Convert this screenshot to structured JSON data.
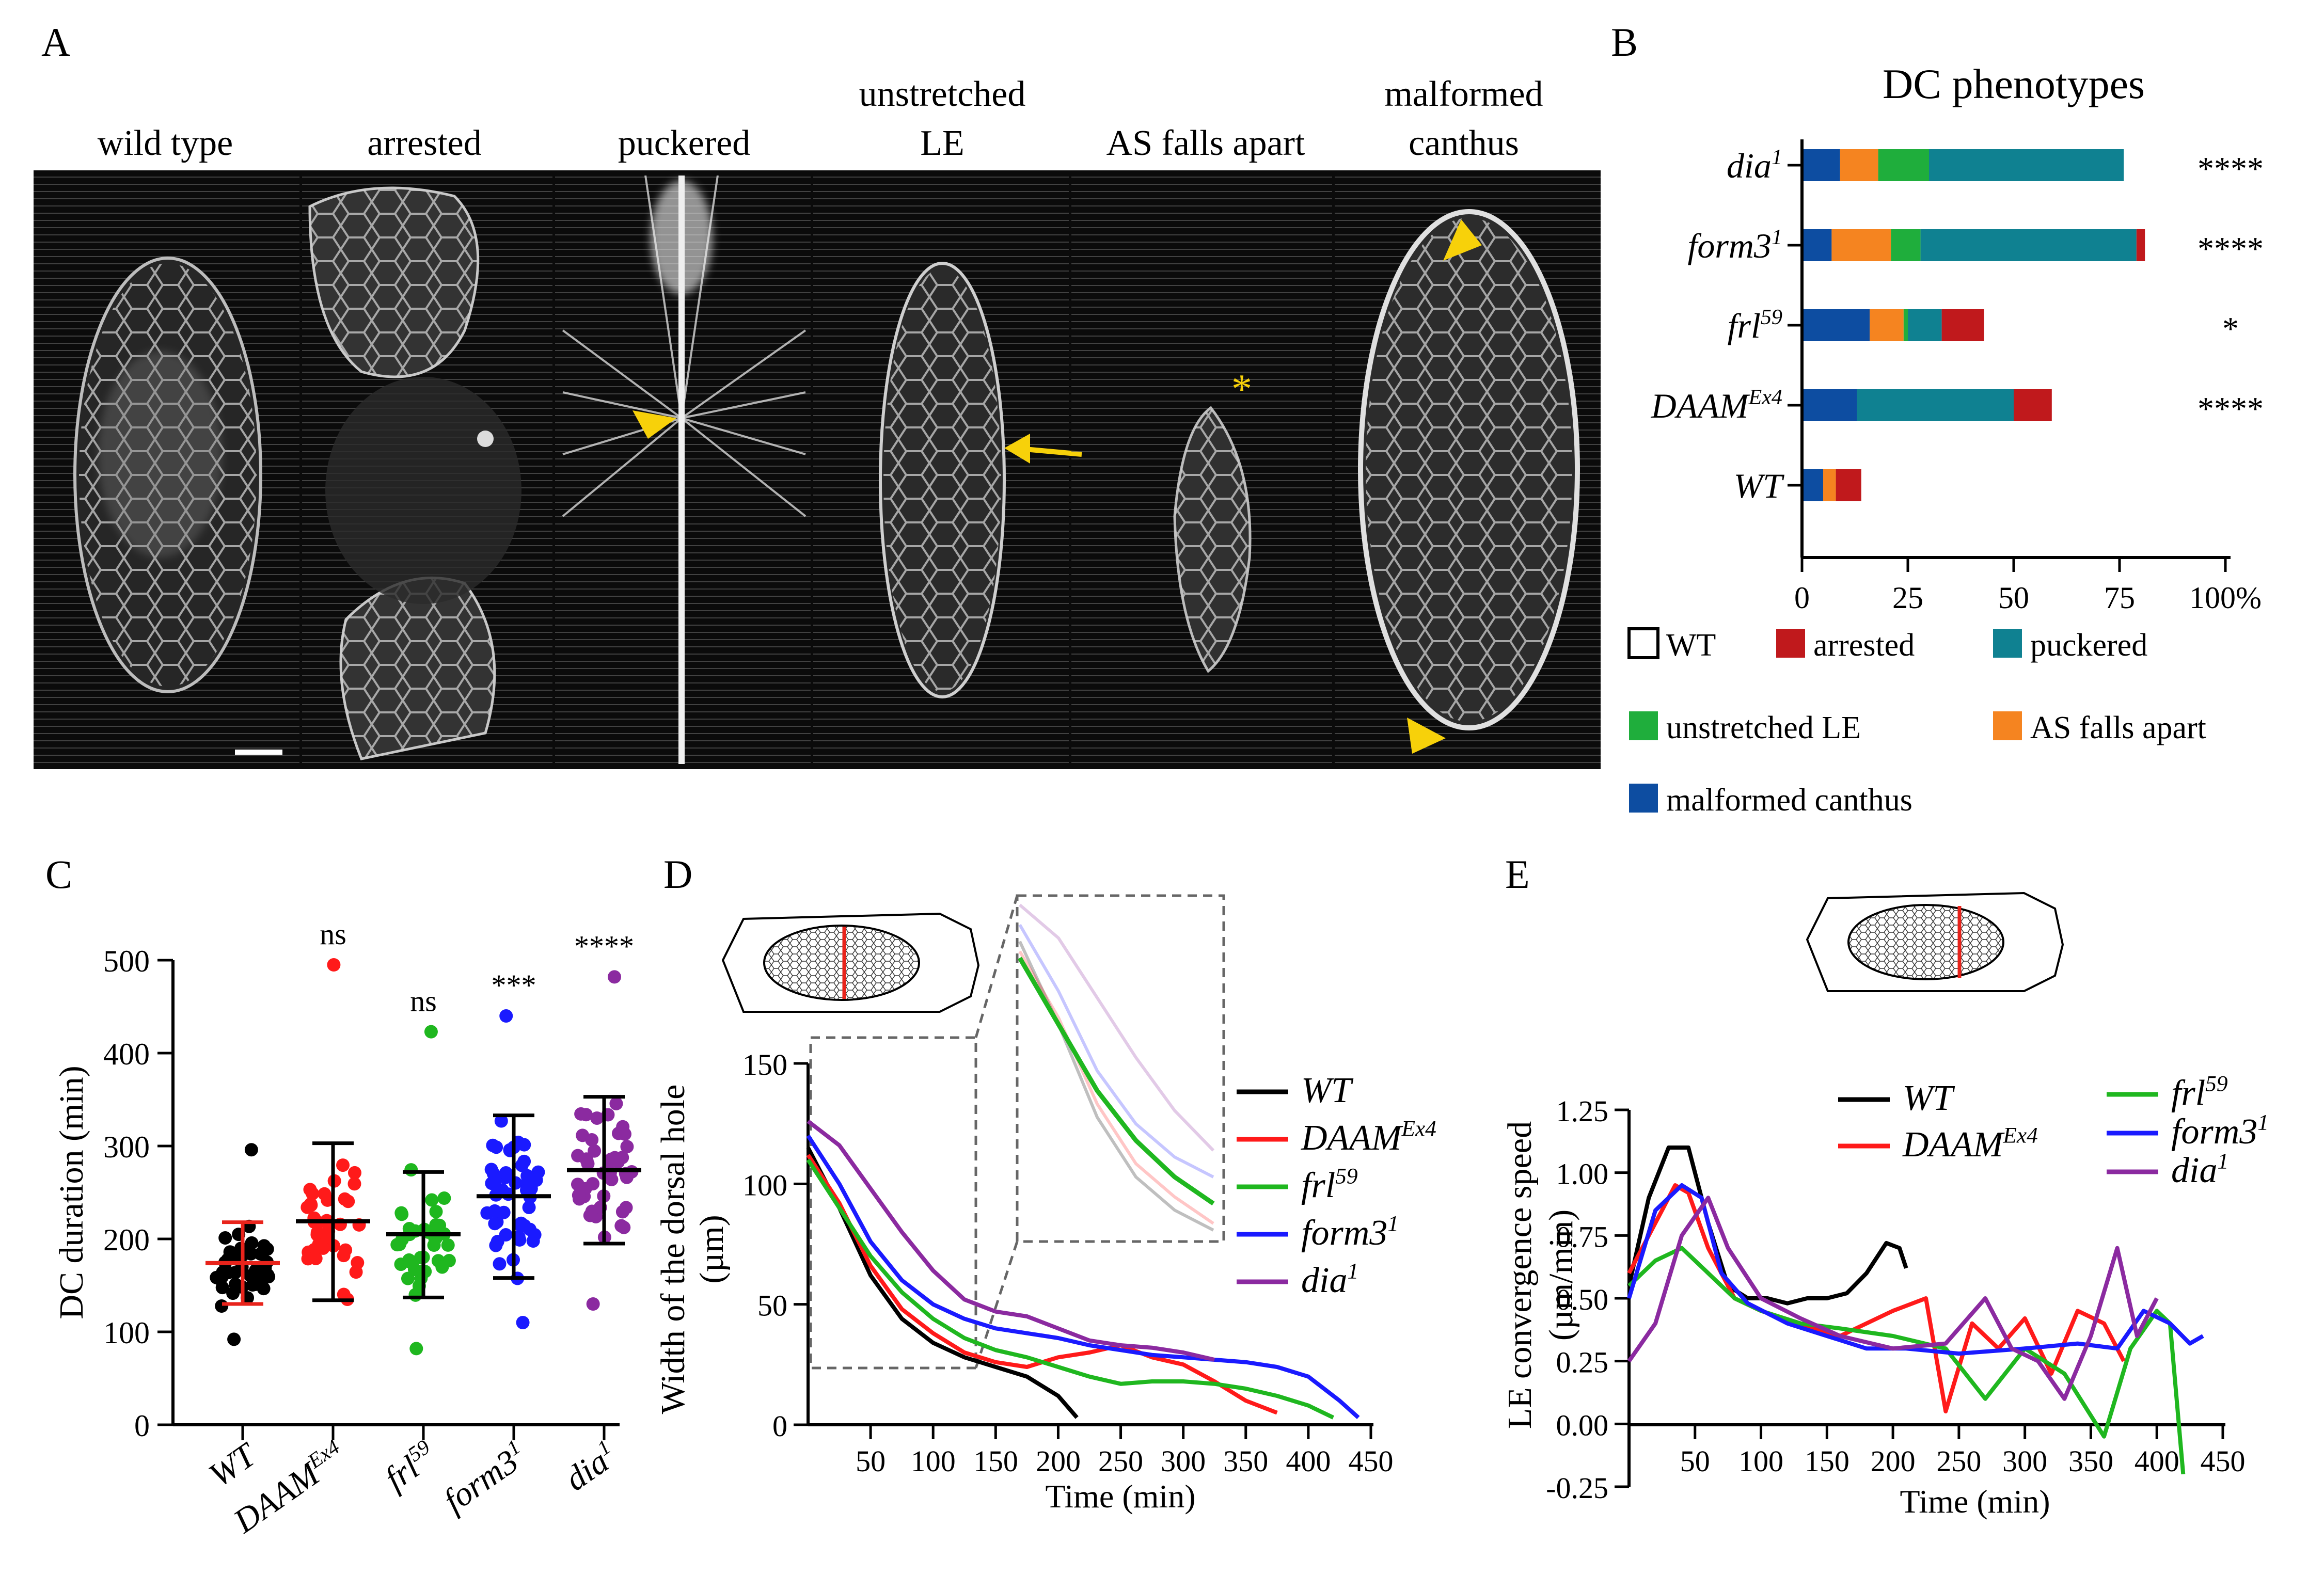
{
  "panel_letters": {
    "a": "A",
    "b": "B",
    "c": "C",
    "d": "D",
    "e": "E"
  },
  "micro_labels": [
    {
      "line1": "",
      "line2": "wild type"
    },
    {
      "line1": "",
      "line2": "arrested"
    },
    {
      "line1": "",
      "line2": "puckered"
    },
    {
      "line1": "unstretched",
      "line2": "LE"
    },
    {
      "line1": "",
      "line2": "AS falls apart"
    },
    {
      "line1": "malformed",
      "line2": "canthus"
    }
  ],
  "colors": {
    "wt": "#000000",
    "arrested": "#c0191c",
    "puckered": "#0f8191",
    "unstretched": "#1fae3c",
    "as_falls": "#f58420",
    "malformed": "#0d4da1",
    "DAAM": "#ff1a1a",
    "frl": "#1fb71f",
    "form3": "#1a1aff",
    "dia": "#8b2aa0",
    "yellow": "#f7d10a",
    "red_line": "#e8231b"
  },
  "chart_data": [
    {
      "panel": "B",
      "type": "bar",
      "orientation": "horizontal-stacked",
      "title": "DC phenotypes",
      "categories": [
        "dia",
        "form3",
        "frl",
        "DAAM",
        "WT"
      ],
      "category_sups": [
        "1",
        "1",
        "59",
        "Ex4",
        ""
      ],
      "significance": [
        "****",
        "****",
        "*",
        "****",
        ""
      ],
      "xticks": [
        "0",
        "25",
        "50",
        "75",
        "100%"
      ],
      "xlim": [
        0,
        100
      ],
      "series": [
        {
          "name": "malformed canthus",
          "color": "#0d4da1",
          "values": [
            9,
            7,
            16,
            13,
            5
          ]
        },
        {
          "name": "AS falls apart",
          "color": "#f58420",
          "values": [
            9,
            14,
            8,
            0,
            3
          ]
        },
        {
          "name": "unstretched LE",
          "color": "#1fae3c",
          "values": [
            12,
            7,
            1,
            0,
            0
          ]
        },
        {
          "name": "puckered",
          "color": "#0f8191",
          "values": [
            46,
            51,
            8,
            37,
            0
          ]
        },
        {
          "name": "arrested",
          "color": "#c0191c",
          "values": [
            0,
            2,
            10,
            9,
            6
          ]
        }
      ],
      "legend": [
        {
          "name": "WT",
          "color": "#ffffff"
        },
        {
          "name": "arrested",
          "color": "#c0191c"
        },
        {
          "name": "puckered",
          "color": "#0f8191"
        },
        {
          "name": "unstretched LE",
          "color": "#1fae3c"
        },
        {
          "name": "AS falls apart",
          "color": "#f58420"
        },
        {
          "name": "malformed canthus",
          "color": "#0d4da1"
        }
      ]
    },
    {
      "panel": "C",
      "type": "scatter",
      "ylabel": "DC duration (min)",
      "ylim": [
        0,
        500
      ],
      "yticks": [
        "0",
        "100",
        "200",
        "300",
        "400",
        "500"
      ],
      "groups": [
        {
          "label": "WT",
          "sup": "",
          "color": "#000000",
          "bar_color": "#e8231b",
          "mean": 174,
          "sd_low": 130,
          "sd_high": 218,
          "sig": "",
          "n": 44,
          "min": 92,
          "max": 296
        },
        {
          "label": "DAAM",
          "sup": "Ex4",
          "color": "#ff1a1a",
          "bar_color": "#000000",
          "mean": 219,
          "sd_low": 134,
          "sd_high": 303,
          "sig": "ns",
          "n": 38,
          "min": 135,
          "max": 495
        },
        {
          "label": "frl",
          "sup": "59",
          "color": "#1fb71f",
          "bar_color": "#000000",
          "mean": 205,
          "sd_low": 137,
          "sd_high": 272,
          "sig": "ns",
          "n": 40,
          "min": 82,
          "max": 423
        },
        {
          "label": "form3",
          "sup": "1",
          "color": "#1a1aff",
          "bar_color": "#000000",
          "mean": 246,
          "sd_low": 158,
          "sd_high": 333,
          "sig": "***",
          "n": 52,
          "min": 110,
          "max": 440
        },
        {
          "label": "dia",
          "sup": "1",
          "color": "#8b2aa0",
          "bar_color": "#000000",
          "mean": 274,
          "sd_low": 195,
          "sd_high": 353,
          "sig": "****",
          "n": 46,
          "min": 130,
          "max": 482
        }
      ]
    },
    {
      "panel": "D",
      "type": "line",
      "xlabel": "Time (min)",
      "ylabel_line1": "Width of the dorsal hole",
      "ylabel_line2": "(µm)",
      "xlim": [
        0,
        450
      ],
      "ylim": [
        0,
        150
      ],
      "xticks": [
        "50",
        "100",
        "150",
        "200",
        "250",
        "300",
        "350",
        "400",
        "450"
      ],
      "yticks": [
        "0",
        "50",
        "100",
        "150"
      ],
      "series": [
        {
          "name": "WT",
          "sup": "",
          "color": "#000000",
          "x": [
            0,
            25,
            50,
            75,
            100,
            125,
            150,
            175,
            200,
            215
          ],
          "y": [
            115,
            90,
            62,
            44,
            34,
            28,
            24,
            20,
            12,
            3
          ]
        },
        {
          "name": "DAAM",
          "sup": "Ex4",
          "color": "#ff1a1a",
          "x": [
            0,
            25,
            50,
            75,
            100,
            125,
            150,
            175,
            200,
            225,
            250,
            275,
            300,
            325,
            350,
            375
          ],
          "y": [
            112,
            92,
            66,
            48,
            38,
            30,
            26,
            24,
            28,
            30,
            33,
            28,
            25,
            18,
            10,
            5
          ]
        },
        {
          "name": "frl",
          "sup": "59",
          "color": "#1fb71f",
          "x": [
            0,
            25,
            50,
            75,
            100,
            125,
            150,
            175,
            200,
            225,
            250,
            275,
            300,
            325,
            350,
            375,
            400,
            420
          ],
          "y": [
            110,
            90,
            70,
            55,
            44,
            36,
            31,
            28,
            24,
            20,
            17,
            18,
            18,
            17,
            15,
            12,
            8,
            3
          ]
        },
        {
          "name": "form3",
          "sup": "1",
          "color": "#1a1aff",
          "x": [
            0,
            25,
            50,
            75,
            100,
            125,
            150,
            175,
            200,
            225,
            250,
            275,
            300,
            325,
            350,
            375,
            400,
            425,
            440
          ],
          "y": [
            120,
            100,
            76,
            60,
            50,
            44,
            40,
            38,
            36,
            33,
            31,
            29,
            28,
            27,
            26,
            24,
            20,
            10,
            3
          ]
        },
        {
          "name": "dia",
          "sup": "1",
          "color": "#8b2aa0",
          "x": [
            0,
            25,
            50,
            75,
            100,
            125,
            150,
            175,
            200,
            225,
            250,
            275,
            300,
            325
          ],
          "y": [
            126,
            116,
            98,
            80,
            64,
            52,
            47,
            45,
            40,
            35,
            33,
            32,
            30,
            27
          ]
        }
      ]
    },
    {
      "panel": "E",
      "type": "line",
      "xlabel": "Time (min)",
      "ylabel_line1": "LE convergence speed",
      "ylabel_line2": "(µm/min)",
      "xlim": [
        0,
        450
      ],
      "ylim": [
        -0.25,
        1.25
      ],
      "xticks": [
        "50",
        "100",
        "150",
        "200",
        "250",
        "300",
        "350",
        "400",
        "450"
      ],
      "yticks": [
        "-0.25",
        "0.00",
        "0.25",
        "0.50",
        "0.75",
        "1.00",
        "1.25"
      ],
      "series": [
        {
          "name": "WT",
          "sup": "",
          "color": "#000000",
          "x": [
            0,
            15,
            30,
            45,
            60,
            75,
            90,
            105,
            120,
            135,
            150,
            165,
            180,
            195,
            205,
            210
          ],
          "y": [
            0.55,
            0.9,
            1.1,
            1.1,
            0.8,
            0.55,
            0.5,
            0.5,
            0.48,
            0.5,
            0.5,
            0.52,
            0.6,
            0.72,
            0.7,
            0.62
          ]
        },
        {
          "name": "DAAM",
          "sup": "Ex4",
          "color": "#ff1a1a",
          "x": [
            0,
            20,
            35,
            45,
            60,
            80,
            100,
            130,
            160,
            200,
            225,
            240,
            260,
            280,
            300,
            320,
            340,
            360,
            375
          ],
          "y": [
            0.6,
            0.8,
            0.95,
            0.92,
            0.7,
            0.5,
            0.45,
            0.4,
            0.35,
            0.45,
            0.5,
            0.05,
            0.4,
            0.3,
            0.42,
            0.2,
            0.45,
            0.4,
            0.25
          ]
        },
        {
          "name": "frl",
          "sup": "59",
          "color": "#1fb71f",
          "x": [
            0,
            20,
            40,
            60,
            80,
            100,
            130,
            160,
            200,
            240,
            270,
            300,
            330,
            360,
            380,
            400,
            410,
            420
          ],
          "y": [
            0.55,
            0.65,
            0.7,
            0.6,
            0.5,
            0.45,
            0.4,
            0.38,
            0.35,
            0.3,
            0.1,
            0.3,
            0.2,
            -0.05,
            0.3,
            0.45,
            0.4,
            -0.2
          ]
        },
        {
          "name": "form3",
          "sup": "1",
          "color": "#1a1aff",
          "x": [
            0,
            20,
            40,
            55,
            70,
            90,
            120,
            150,
            180,
            210,
            250,
            300,
            340,
            370,
            390,
            410,
            425,
            435
          ],
          "y": [
            0.5,
            0.85,
            0.95,
            0.9,
            0.6,
            0.48,
            0.4,
            0.35,
            0.3,
            0.3,
            0.28,
            0.3,
            0.32,
            0.3,
            0.45,
            0.4,
            0.32,
            0.35
          ]
        },
        {
          "name": "dia",
          "sup": "1",
          "color": "#8b2aa0",
          "x": [
            0,
            20,
            40,
            60,
            75,
            100,
            130,
            160,
            200,
            240,
            270,
            290,
            310,
            330,
            350,
            370,
            385,
            400
          ],
          "y": [
            0.25,
            0.4,
            0.75,
            0.9,
            0.7,
            0.5,
            0.42,
            0.35,
            0.3,
            0.32,
            0.5,
            0.3,
            0.25,
            0.1,
            0.35,
            0.7,
            0.35,
            0.5
          ]
        }
      ]
    }
  ]
}
